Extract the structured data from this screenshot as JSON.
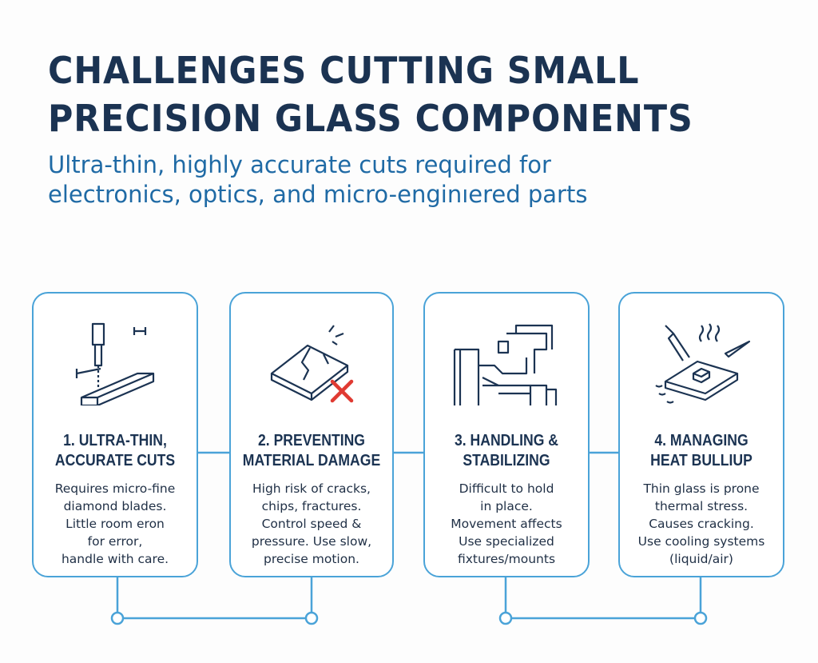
{
  "title_lines": [
    "CHALLENGES CUTTING SMALL",
    "PRECISION GLASS COMPONENTS"
  ],
  "subtitle_lines": [
    "Ultra-thin, highly accurate cuts required for",
    "electronics, optics, and micro-enginıered parts"
  ],
  "colors": {
    "title": "#1b3352",
    "subtitle": "#1f6aa5",
    "accent": "#4aa3d8",
    "error": "#e03a32"
  },
  "cards": [
    {
      "icon": "blade-cutting-icon",
      "heading": [
        "1. ULTRA-THIN,",
        "ACCURATE CUTS"
      ],
      "body": [
        "Requires micro-fine",
        "diamond blades.",
        "Little room eron",
        "for error,",
        "handle with care."
      ]
    },
    {
      "icon": "cracked-glass-icon",
      "heading": [
        "2. PREVENTING",
        "MATERIAL DAMAGE"
      ],
      "body": [
        "High risk of cracks,",
        "chips, fractures.",
        "Control speed &",
        "pressure. Use slow,",
        "precise motion."
      ]
    },
    {
      "icon": "fixture-mount-icon",
      "heading": [
        "3. HANDLING &",
        "STABILIZING"
      ],
      "body": [
        "Difficult to hold",
        "in place.",
        "Movement affects",
        "Use specialized",
        "fixtures/mounts"
      ]
    },
    {
      "icon": "heat-glass-icon",
      "heading": [
        "4. MANAGING",
        "HEAT BULLIUP"
      ],
      "body": [
        "Thin glass is prone",
        "thermal stress.",
        "Causes cracking.",
        "Use cooling systems",
        "(liquid/air)"
      ]
    }
  ]
}
